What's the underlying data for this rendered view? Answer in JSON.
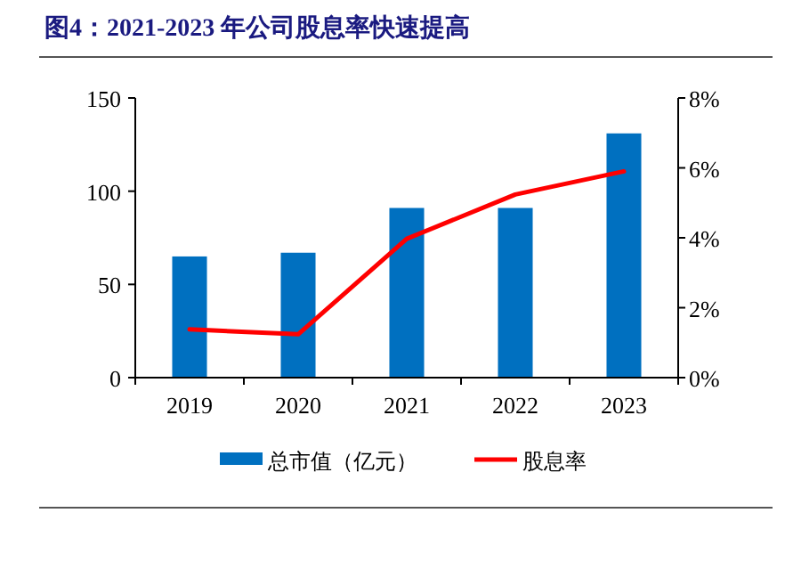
{
  "chart_data": {
    "type": "bar",
    "title": "图4：2021-2023 年公司股息率快速提高",
    "categories": [
      "2019",
      "2020",
      "2021",
      "2022",
      "2023"
    ],
    "series": [
      {
        "name": "总市值（亿元）",
        "color": "#0070c0",
        "values": [
          65,
          67,
          91,
          91,
          131
        ]
      },
      {
        "name": "股息率",
        "type": "line",
        "axis": "y2",
        "color": "#ff0000",
        "values": [
          1.38,
          1.24,
          3.97,
          5.24,
          5.9
        ]
      }
    ],
    "ylim": [
      0,
      150
    ],
    "yticks": [
      0,
      50,
      100,
      150
    ],
    "y2lim": [
      0,
      8
    ],
    "y2ticks": [
      {
        "value": 0,
        "label": "0%"
      },
      {
        "value": 2,
        "label": "2%"
      },
      {
        "value": 4,
        "label": "4%"
      },
      {
        "value": 6,
        "label": "6%"
      },
      {
        "value": 8,
        "label": "8%"
      }
    ],
    "grid": false,
    "legend": "bottom"
  }
}
